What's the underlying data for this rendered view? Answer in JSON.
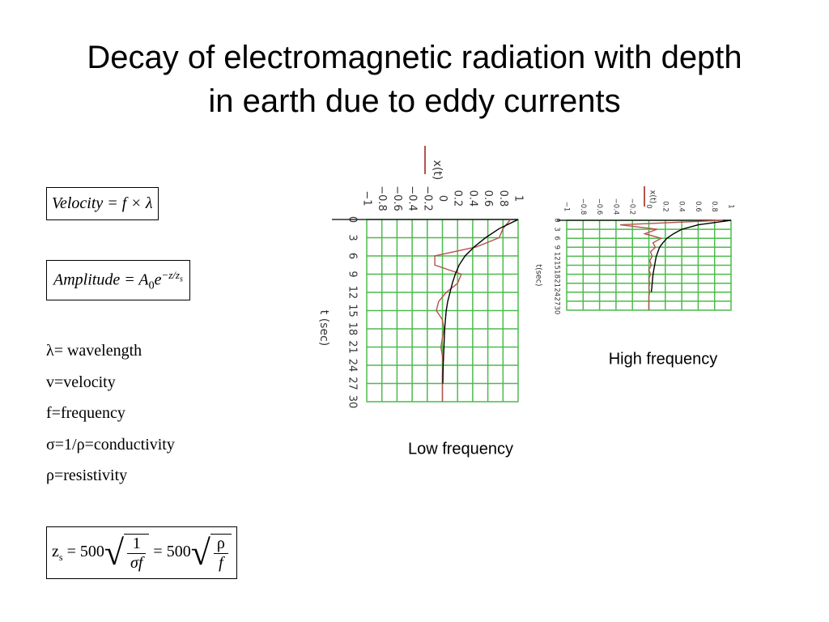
{
  "slide": {
    "title": "Decay of electromagnetic radiation with depth in earth due to eddy currents",
    "velocity_formula": "Velocity = f × λ",
    "amplitude_formula": {
      "lhs": "Amplitude = A",
      "sub": "0",
      "base": "e",
      "exp": "−z/z",
      "exp_sub": "s"
    },
    "skin_formula": {
      "lhs": "z",
      "lhs_sub": "s",
      "eq1": "= 500",
      "num1": "1",
      "den1": "σf",
      "eq2": "= 500",
      "num2": "ρ",
      "den2": "f"
    },
    "definitions": [
      "λ= wavelength",
      "v=velocity",
      "f=frequency",
      "σ=1/ρ=conductivity",
      "ρ=resistivity"
    ]
  },
  "chart_data": [
    {
      "type": "line",
      "title": "Low frequency",
      "x_label": "t (sec)",
      "y_label": "x(t)",
      "x": [
        0,
        1.5,
        3,
        4.5,
        6,
        7.5,
        9,
        10.5,
        12,
        13.5,
        15,
        16.5,
        18,
        19.5,
        21,
        22.5,
        24,
        25.5,
        27,
        28.5,
        30
      ],
      "xlim": [
        0,
        30
      ],
      "xticks": [
        0,
        3,
        6,
        9,
        12,
        15,
        18,
        21,
        24,
        27,
        30
      ],
      "ylim": [
        -1,
        1
      ],
      "yticks": [
        {
          "value": -1,
          "label": "−1"
        },
        {
          "value": -0.8,
          "label": "−0.8"
        },
        {
          "value": -0.6,
          "label": "−0.6"
        },
        {
          "value": -0.4,
          "label": "−0.4"
        },
        {
          "value": -0.2,
          "label": "−0.2"
        },
        0,
        0.2,
        0.4,
        0.6,
        0.8,
        1
      ],
      "grid": true,
      "series": [
        {
          "color": "#b5534d",
          "values": [
            0.9,
            0.8,
            0.75,
            0.45,
            -0.1,
            -0.1,
            0.25,
            0.2,
            0.05,
            -0.05,
            -0.08,
            0,
            0.02,
            0,
            -0.02,
            0,
            0.01,
            0,
            0,
            0,
            0
          ]
        },
        {
          "color": "#000000",
          "values": [
            1,
            0.75,
            0.57,
            0.42,
            0.3,
            0.22,
            0.17,
            0.13,
            0.1,
            0.07,
            0.05,
            0.04,
            0.03,
            0.025,
            0.02,
            0.015,
            0.01,
            0.008,
            0.005,
            null,
            null
          ]
        }
      ]
    },
    {
      "type": "line",
      "title": "High frequency",
      "x_label": "t(sec)",
      "y_label": "x(t)",
      "x": [
        0,
        1.5,
        3,
        4.5,
        6,
        7.5,
        9,
        10.5,
        12,
        13.5,
        15,
        16.5,
        18,
        19.5,
        21,
        22.5,
        24,
        25.5,
        27,
        28.5,
        30
      ],
      "xlim": [
        0,
        30
      ],
      "xticks": [
        0,
        3,
        6,
        9,
        12,
        15,
        18,
        21,
        24,
        27,
        30
      ],
      "ylim": [
        -1,
        1
      ],
      "yticks": [
        {
          "value": -1,
          "label": "−1"
        },
        {
          "value": -0.8,
          "label": "−0.8"
        },
        {
          "value": -0.6,
          "label": "−0.6"
        },
        {
          "value": -0.4,
          "label": "−0.4"
        },
        {
          "value": -0.2,
          "label": "−0.2"
        },
        0,
        0.2,
        0.4,
        0.6,
        0.8,
        1
      ],
      "grid": true,
      "series": [
        {
          "color": "#b5534d",
          "values": [
            0.9,
            -0.35,
            0.1,
            -0.05,
            0.15,
            0.05,
            0.08,
            0.02,
            0.04,
            0.01,
            0.03,
            0,
            0.02,
            0,
            0.01,
            0,
            0.01,
            0,
            0,
            0,
            0
          ]
        },
        {
          "color": "#000000",
          "values": [
            1,
            0.6,
            0.4,
            0.3,
            0.22,
            0.17,
            0.13,
            0.11,
            0.09,
            0.08,
            0.07,
            0.06,
            0.05,
            0.045,
            0.04,
            0.035,
            0.03,
            null,
            null,
            null,
            null
          ]
        }
      ]
    }
  ]
}
